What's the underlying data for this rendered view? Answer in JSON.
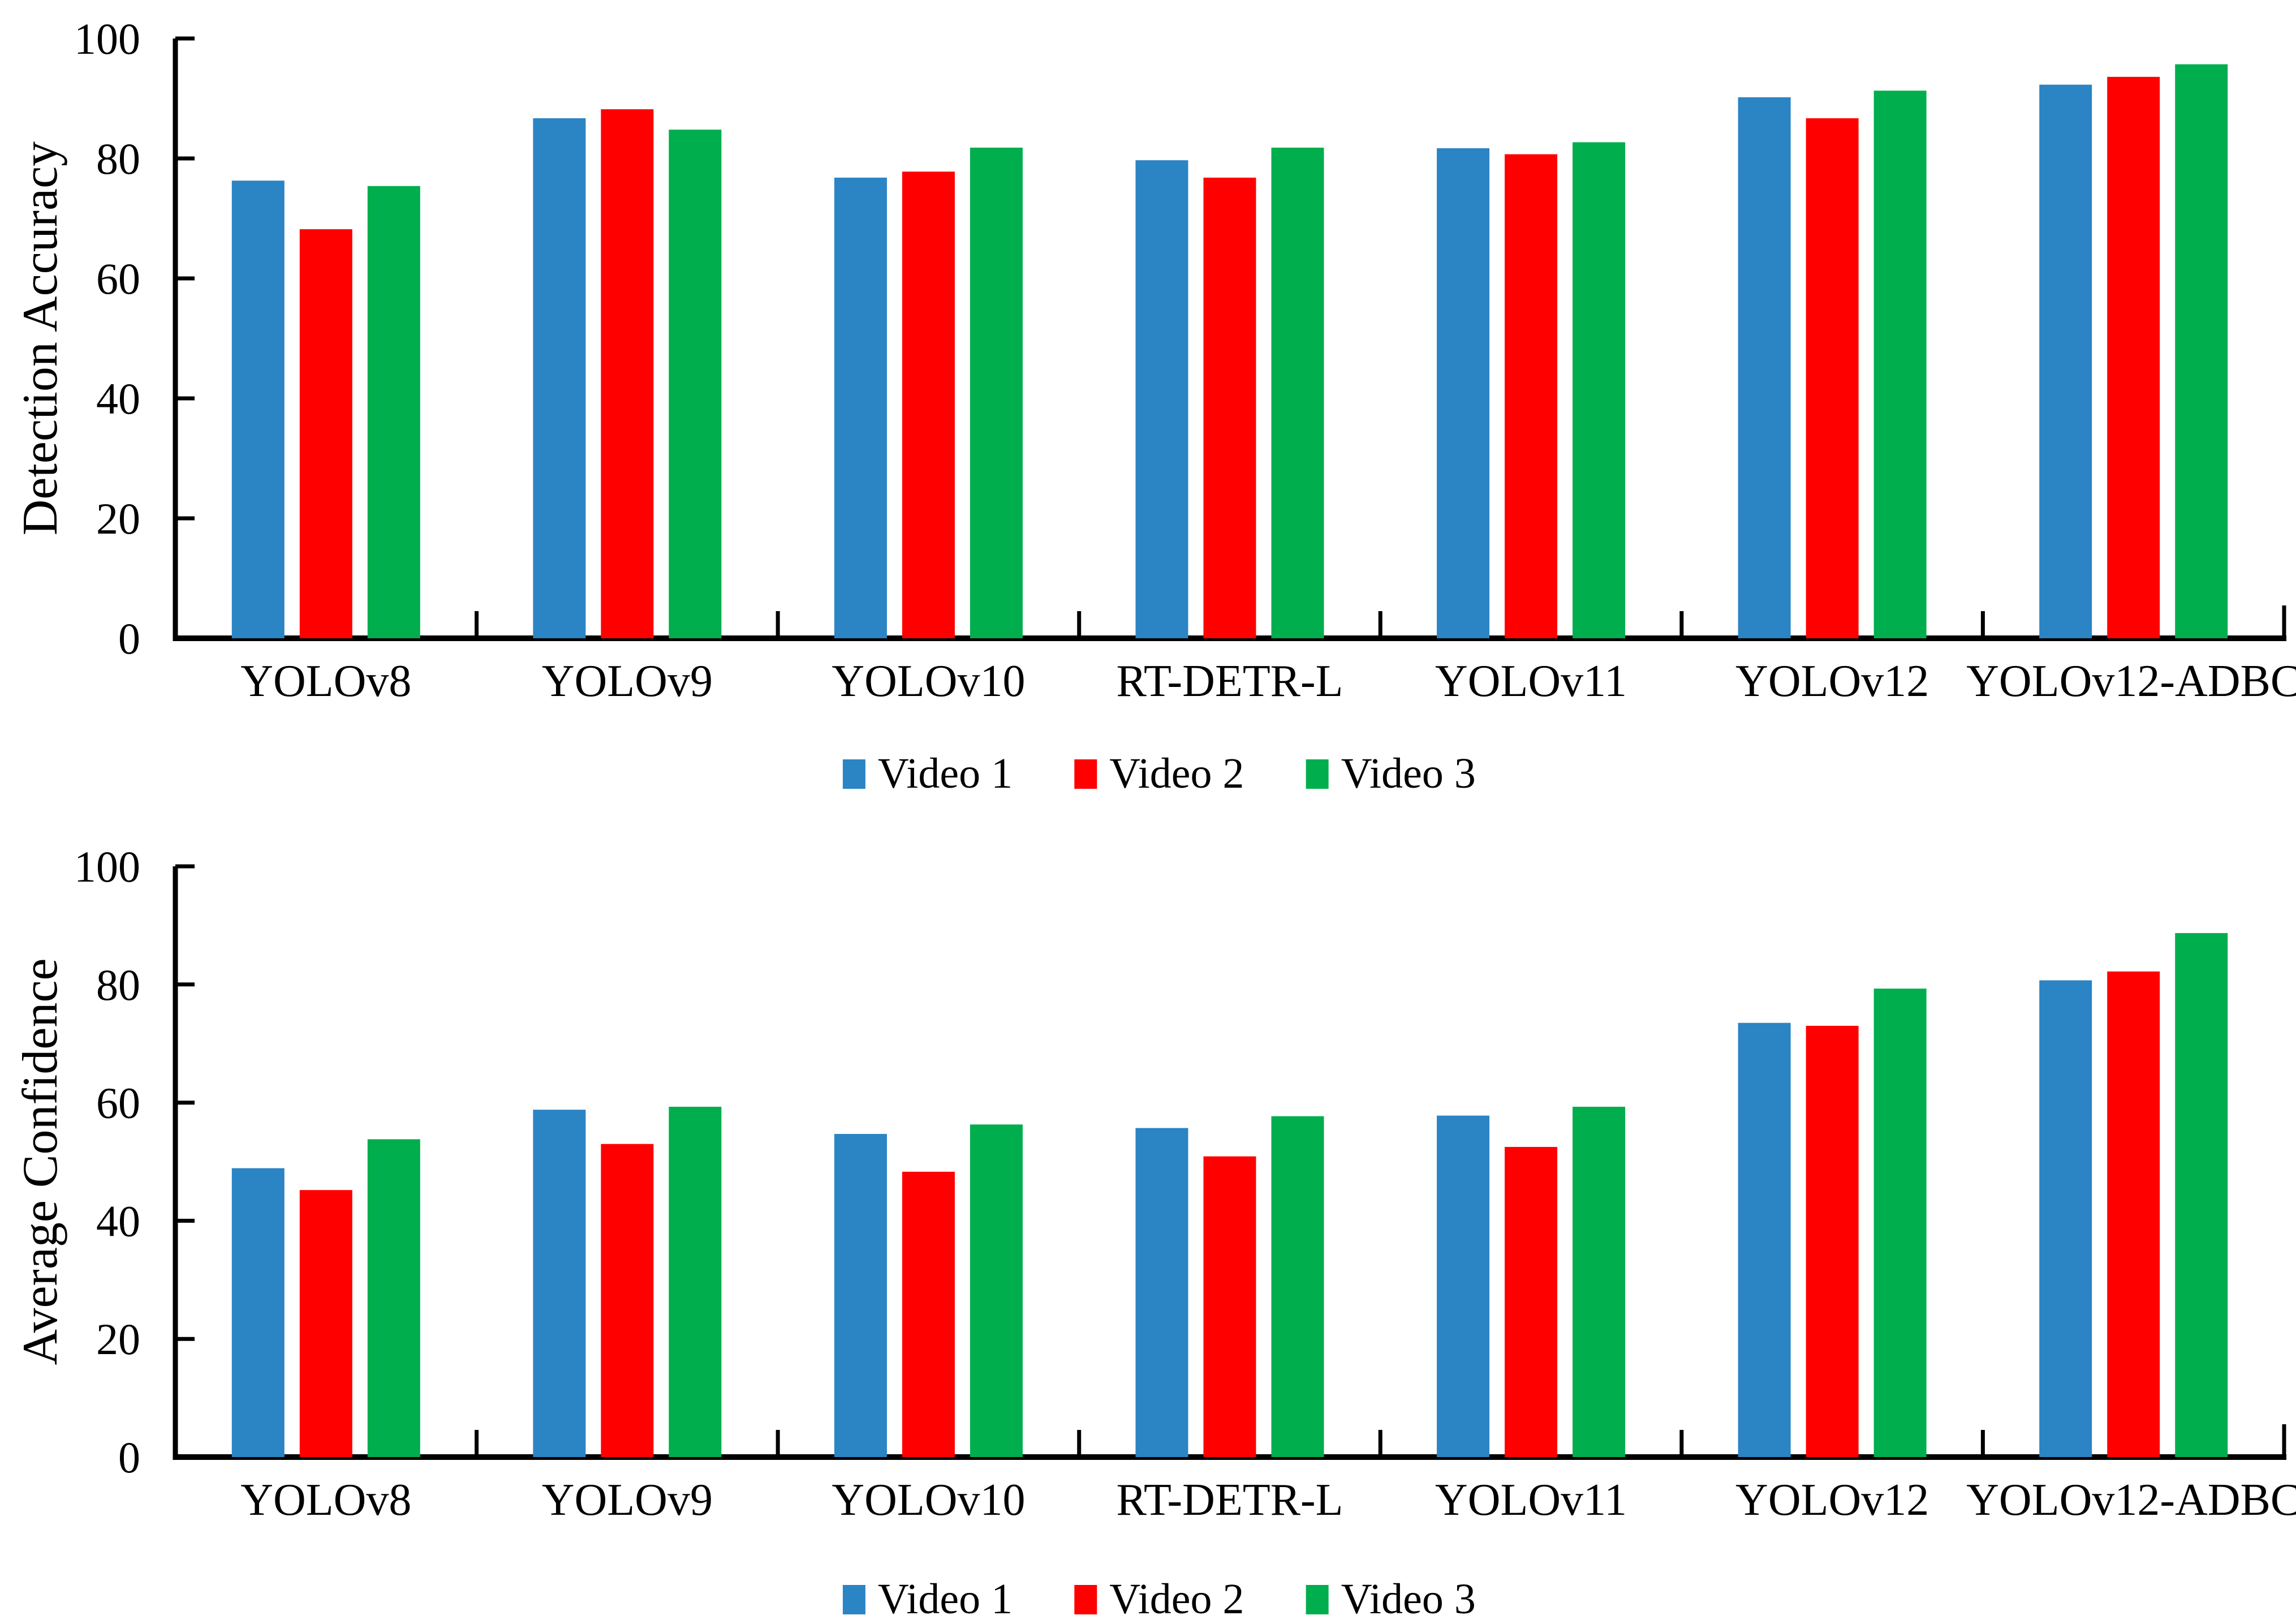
{
  "figure": {
    "background": "#ffffff",
    "axis_color": "#000000",
    "text_color": "#000000"
  },
  "legend": {
    "items": [
      {
        "label": "Video 1",
        "color": "#2B84C4",
        "icon": "legend-swatch-blue"
      },
      {
        "label": "Video 2",
        "color": "#FF0000",
        "icon": "legend-swatch-red"
      },
      {
        "label": "Video 3",
        "color": "#00AE4D",
        "icon": "legend-swatch-green"
      }
    ]
  },
  "chart_data": [
    {
      "type": "bar",
      "title": "",
      "xlabel": "",
      "ylabel": "Detection Accuracy",
      "ylim": [
        0,
        100
      ],
      "yticks": [
        0,
        20,
        40,
        60,
        80,
        100
      ],
      "grid": false,
      "legend_position": "bottom-center",
      "categories": [
        "YOLOv8",
        "YOLOv9",
        "YOLOv10",
        "RT-DETR-L",
        "YOLOv11",
        "YOLOv12",
        "YOLOv12-ADBC"
      ],
      "series": [
        {
          "name": "Video 1",
          "color": "#2B84C4",
          "values": [
            76.3,
            86.7,
            76.8,
            79.7,
            81.7,
            90.2,
            92.3
          ]
        },
        {
          "name": "Video 2",
          "color": "#FF0000",
          "values": [
            68.2,
            88.2,
            77.8,
            76.8,
            80.7,
            86.7,
            93.6
          ]
        },
        {
          "name": "Video 3",
          "color": "#00AE4D",
          "values": [
            75.4,
            84.8,
            81.8,
            81.8,
            82.7,
            91.3,
            95.7
          ]
        }
      ]
    },
    {
      "type": "bar",
      "title": "",
      "xlabel": "",
      "ylabel": "Average Confidence",
      "ylim": [
        0,
        100
      ],
      "yticks": [
        0,
        20,
        40,
        60,
        80,
        100
      ],
      "grid": false,
      "legend_position": "bottom-center",
      "categories": [
        "YOLOv8",
        "YOLOv9",
        "YOLOv10",
        "RT-DETR-L",
        "YOLOv11",
        "YOLOv12",
        "YOLOv12-ADBC"
      ],
      "series": [
        {
          "name": "Video 1",
          "color": "#2B84C4",
          "values": [
            48.9,
            58.8,
            54.7,
            55.7,
            57.8,
            73.5,
            80.7
          ]
        },
        {
          "name": "Video 2",
          "color": "#FF0000",
          "values": [
            45.2,
            53.0,
            48.3,
            50.9,
            52.5,
            73.0,
            82.2
          ]
        },
        {
          "name": "Video 3",
          "color": "#00AE4D",
          "values": [
            53.8,
            59.3,
            56.3,
            57.7,
            59.3,
            79.3,
            88.7
          ]
        }
      ]
    }
  ]
}
